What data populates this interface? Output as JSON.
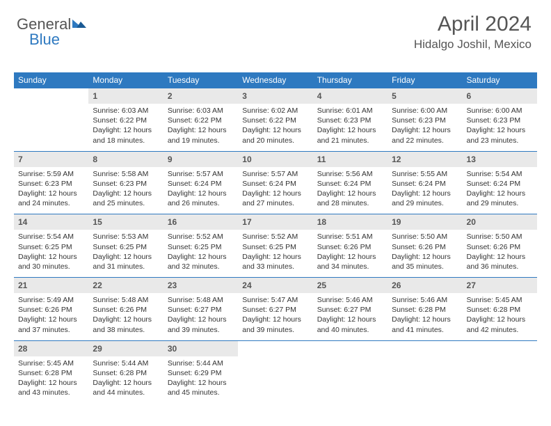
{
  "logo": {
    "part1": "General",
    "part2": "Blue"
  },
  "title": "April 2024",
  "location": "Hidalgo Joshil, Mexico",
  "colors": {
    "brand_blue": "#2e79c0",
    "header_text": "#555555",
    "daynum_bg": "#e9e9e9",
    "body_text": "#333333",
    "white": "#ffffff"
  },
  "day_names": [
    "Sunday",
    "Monday",
    "Tuesday",
    "Wednesday",
    "Thursday",
    "Friday",
    "Saturday"
  ],
  "weeks": [
    {
      "nums": [
        "",
        "1",
        "2",
        "3",
        "4",
        "5",
        "6"
      ],
      "cells": [
        null,
        {
          "sr": "Sunrise: 6:03 AM",
          "ss": "Sunset: 6:22 PM",
          "d1": "Daylight: 12 hours",
          "d2": "and 18 minutes."
        },
        {
          "sr": "Sunrise: 6:03 AM",
          "ss": "Sunset: 6:22 PM",
          "d1": "Daylight: 12 hours",
          "d2": "and 19 minutes."
        },
        {
          "sr": "Sunrise: 6:02 AM",
          "ss": "Sunset: 6:22 PM",
          "d1": "Daylight: 12 hours",
          "d2": "and 20 minutes."
        },
        {
          "sr": "Sunrise: 6:01 AM",
          "ss": "Sunset: 6:23 PM",
          "d1": "Daylight: 12 hours",
          "d2": "and 21 minutes."
        },
        {
          "sr": "Sunrise: 6:00 AM",
          "ss": "Sunset: 6:23 PM",
          "d1": "Daylight: 12 hours",
          "d2": "and 22 minutes."
        },
        {
          "sr": "Sunrise: 6:00 AM",
          "ss": "Sunset: 6:23 PM",
          "d1": "Daylight: 12 hours",
          "d2": "and 23 minutes."
        }
      ]
    },
    {
      "nums": [
        "7",
        "8",
        "9",
        "10",
        "11",
        "12",
        "13"
      ],
      "cells": [
        {
          "sr": "Sunrise: 5:59 AM",
          "ss": "Sunset: 6:23 PM",
          "d1": "Daylight: 12 hours",
          "d2": "and 24 minutes."
        },
        {
          "sr": "Sunrise: 5:58 AM",
          "ss": "Sunset: 6:23 PM",
          "d1": "Daylight: 12 hours",
          "d2": "and 25 minutes."
        },
        {
          "sr": "Sunrise: 5:57 AM",
          "ss": "Sunset: 6:24 PM",
          "d1": "Daylight: 12 hours",
          "d2": "and 26 minutes."
        },
        {
          "sr": "Sunrise: 5:57 AM",
          "ss": "Sunset: 6:24 PM",
          "d1": "Daylight: 12 hours",
          "d2": "and 27 minutes."
        },
        {
          "sr": "Sunrise: 5:56 AM",
          "ss": "Sunset: 6:24 PM",
          "d1": "Daylight: 12 hours",
          "d2": "and 28 minutes."
        },
        {
          "sr": "Sunrise: 5:55 AM",
          "ss": "Sunset: 6:24 PM",
          "d1": "Daylight: 12 hours",
          "d2": "and 29 minutes."
        },
        {
          "sr": "Sunrise: 5:54 AM",
          "ss": "Sunset: 6:24 PM",
          "d1": "Daylight: 12 hours",
          "d2": "and 29 minutes."
        }
      ]
    },
    {
      "nums": [
        "14",
        "15",
        "16",
        "17",
        "18",
        "19",
        "20"
      ],
      "cells": [
        {
          "sr": "Sunrise: 5:54 AM",
          "ss": "Sunset: 6:25 PM",
          "d1": "Daylight: 12 hours",
          "d2": "and 30 minutes."
        },
        {
          "sr": "Sunrise: 5:53 AM",
          "ss": "Sunset: 6:25 PM",
          "d1": "Daylight: 12 hours",
          "d2": "and 31 minutes."
        },
        {
          "sr": "Sunrise: 5:52 AM",
          "ss": "Sunset: 6:25 PM",
          "d1": "Daylight: 12 hours",
          "d2": "and 32 minutes."
        },
        {
          "sr": "Sunrise: 5:52 AM",
          "ss": "Sunset: 6:25 PM",
          "d1": "Daylight: 12 hours",
          "d2": "and 33 minutes."
        },
        {
          "sr": "Sunrise: 5:51 AM",
          "ss": "Sunset: 6:26 PM",
          "d1": "Daylight: 12 hours",
          "d2": "and 34 minutes."
        },
        {
          "sr": "Sunrise: 5:50 AM",
          "ss": "Sunset: 6:26 PM",
          "d1": "Daylight: 12 hours",
          "d2": "and 35 minutes."
        },
        {
          "sr": "Sunrise: 5:50 AM",
          "ss": "Sunset: 6:26 PM",
          "d1": "Daylight: 12 hours",
          "d2": "and 36 minutes."
        }
      ]
    },
    {
      "nums": [
        "21",
        "22",
        "23",
        "24",
        "25",
        "26",
        "27"
      ],
      "cells": [
        {
          "sr": "Sunrise: 5:49 AM",
          "ss": "Sunset: 6:26 PM",
          "d1": "Daylight: 12 hours",
          "d2": "and 37 minutes."
        },
        {
          "sr": "Sunrise: 5:48 AM",
          "ss": "Sunset: 6:26 PM",
          "d1": "Daylight: 12 hours",
          "d2": "and 38 minutes."
        },
        {
          "sr": "Sunrise: 5:48 AM",
          "ss": "Sunset: 6:27 PM",
          "d1": "Daylight: 12 hours",
          "d2": "and 39 minutes."
        },
        {
          "sr": "Sunrise: 5:47 AM",
          "ss": "Sunset: 6:27 PM",
          "d1": "Daylight: 12 hours",
          "d2": "and 39 minutes."
        },
        {
          "sr": "Sunrise: 5:46 AM",
          "ss": "Sunset: 6:27 PM",
          "d1": "Daylight: 12 hours",
          "d2": "and 40 minutes."
        },
        {
          "sr": "Sunrise: 5:46 AM",
          "ss": "Sunset: 6:28 PM",
          "d1": "Daylight: 12 hours",
          "d2": "and 41 minutes."
        },
        {
          "sr": "Sunrise: 5:45 AM",
          "ss": "Sunset: 6:28 PM",
          "d1": "Daylight: 12 hours",
          "d2": "and 42 minutes."
        }
      ]
    },
    {
      "nums": [
        "28",
        "29",
        "30",
        "",
        "",
        "",
        ""
      ],
      "cells": [
        {
          "sr": "Sunrise: 5:45 AM",
          "ss": "Sunset: 6:28 PM",
          "d1": "Daylight: 12 hours",
          "d2": "and 43 minutes."
        },
        {
          "sr": "Sunrise: 5:44 AM",
          "ss": "Sunset: 6:28 PM",
          "d1": "Daylight: 12 hours",
          "d2": "and 44 minutes."
        },
        {
          "sr": "Sunrise: 5:44 AM",
          "ss": "Sunset: 6:29 PM",
          "d1": "Daylight: 12 hours",
          "d2": "and 45 minutes."
        },
        null,
        null,
        null,
        null
      ]
    }
  ]
}
